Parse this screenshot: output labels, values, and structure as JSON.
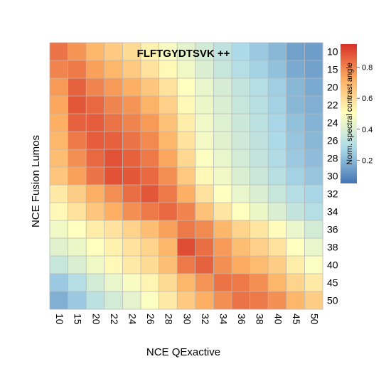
{
  "chart_data": {
    "type": "heatmap",
    "title": "FLFTGYDTSVK ++",
    "xlabel": "NCE QExactive",
    "ylabel": "NCE Fusion Lumos",
    "x_categories": [
      "10",
      "15",
      "20",
      "22",
      "24",
      "26",
      "28",
      "30",
      "32",
      "34",
      "36",
      "38",
      "40",
      "45",
      "50"
    ],
    "y_categories": [
      "10",
      "15",
      "20",
      "22",
      "24",
      "26",
      "28",
      "30",
      "32",
      "34",
      "36",
      "38",
      "40",
      "45",
      "50"
    ],
    "colorbar": {
      "label": "Norm. spectral contrast angle",
      "ticks": [
        0.2,
        0.4,
        0.6,
        0.8
      ],
      "range": [
        0.05,
        0.95
      ]
    },
    "colors": {
      "low": "#4575b4",
      "mid_low": "#e0f3f8",
      "mid": "#ffffbf",
      "mid_high": "#fdae61",
      "high": "#d73027"
    },
    "values": [
      [
        0.83,
        0.77,
        0.7,
        0.65,
        0.6,
        0.54,
        0.48,
        0.43,
        0.38,
        0.33,
        0.28,
        0.24,
        0.2,
        0.15,
        0.14
      ],
      [
        0.8,
        0.82,
        0.75,
        0.7,
        0.65,
        0.58,
        0.52,
        0.46,
        0.4,
        0.35,
        0.3,
        0.26,
        0.22,
        0.17,
        0.15
      ],
      [
        0.76,
        0.86,
        0.8,
        0.76,
        0.72,
        0.66,
        0.58,
        0.5,
        0.44,
        0.39,
        0.34,
        0.3,
        0.25,
        0.2,
        0.17
      ],
      [
        0.74,
        0.88,
        0.85,
        0.8,
        0.77,
        0.71,
        0.63,
        0.52,
        0.45,
        0.4,
        0.35,
        0.31,
        0.26,
        0.2,
        0.18
      ],
      [
        0.72,
        0.86,
        0.87,
        0.83,
        0.8,
        0.76,
        0.67,
        0.55,
        0.46,
        0.41,
        0.36,
        0.32,
        0.27,
        0.22,
        0.19
      ],
      [
        0.7,
        0.82,
        0.87,
        0.86,
        0.83,
        0.79,
        0.7,
        0.58,
        0.47,
        0.42,
        0.37,
        0.33,
        0.28,
        0.23,
        0.2
      ],
      [
        0.68,
        0.78,
        0.85,
        0.89,
        0.86,
        0.82,
        0.74,
        0.61,
        0.49,
        0.44,
        0.38,
        0.34,
        0.29,
        0.24,
        0.21
      ],
      [
        0.66,
        0.75,
        0.83,
        0.89,
        0.88,
        0.85,
        0.78,
        0.65,
        0.52,
        0.46,
        0.4,
        0.36,
        0.31,
        0.26,
        0.23
      ],
      [
        0.56,
        0.64,
        0.72,
        0.78,
        0.84,
        0.88,
        0.82,
        0.72,
        0.58,
        0.5,
        0.44,
        0.4,
        0.35,
        0.3,
        0.27
      ],
      [
        0.52,
        0.58,
        0.66,
        0.72,
        0.78,
        0.82,
        0.85,
        0.8,
        0.67,
        0.57,
        0.5,
        0.45,
        0.4,
        0.34,
        0.3
      ],
      [
        0.46,
        0.5,
        0.55,
        0.58,
        0.62,
        0.68,
        0.75,
        0.82,
        0.79,
        0.7,
        0.62,
        0.57,
        0.51,
        0.44,
        0.38
      ],
      [
        0.42,
        0.45,
        0.5,
        0.54,
        0.58,
        0.62,
        0.7,
        0.9,
        0.84,
        0.76,
        0.68,
        0.63,
        0.58,
        0.5,
        0.44
      ],
      [
        0.35,
        0.4,
        0.46,
        0.52,
        0.56,
        0.6,
        0.68,
        0.82,
        0.86,
        0.78,
        0.73,
        0.69,
        0.64,
        0.55,
        0.49
      ],
      [
        0.24,
        0.3,
        0.38,
        0.44,
        0.48,
        0.53,
        0.6,
        0.7,
        0.77,
        0.83,
        0.82,
        0.78,
        0.7,
        0.62,
        0.56
      ],
      [
        0.18,
        0.24,
        0.32,
        0.38,
        0.43,
        0.49,
        0.56,
        0.65,
        0.72,
        0.78,
        0.83,
        0.82,
        0.78,
        0.7,
        0.64
      ]
    ]
  }
}
